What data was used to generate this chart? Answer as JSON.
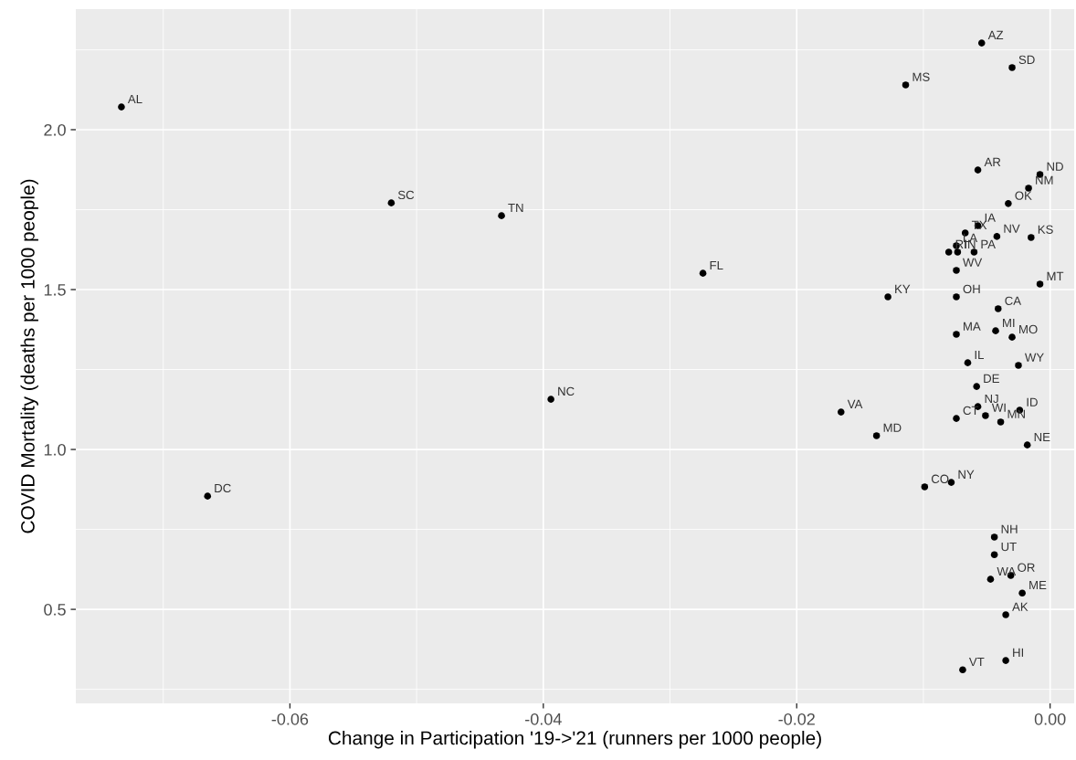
{
  "chart_data": {
    "type": "scatter",
    "xlabel": "Change in Participation '19->'21 (runners per 1000 people)",
    "ylabel": "COVID Mortality (deaths per 1000 people)",
    "xlim": [
      -0.0769,
      0.0019
    ],
    "ylim": [
      0.206,
      2.377
    ],
    "xticks": [
      {
        "value": -0.06,
        "label": "-0.06"
      },
      {
        "value": -0.04,
        "label": "-0.04"
      },
      {
        "value": -0.02,
        "label": "-0.02"
      },
      {
        "value": 0,
        "label": "0.00"
      }
    ],
    "yticks": [
      {
        "value": 0.5,
        "label": "0.5"
      },
      {
        "value": 1.0,
        "label": "1.0"
      },
      {
        "value": 1.5,
        "label": "1.5"
      },
      {
        "value": 2.0,
        "label": "2.0"
      }
    ],
    "grid": true,
    "marker": "circle",
    "legend": false,
    "series": [
      {
        "color": "#000000",
        "x": [
          -0.0733,
          -0.0665,
          -0.052,
          -0.0433,
          -0.0394,
          -0.0274,
          -0.0165,
          -0.0137,
          -0.0128,
          -0.0114,
          -0.0054,
          -0.003,
          -0.0057,
          -0.0008,
          -0.0017,
          -0.0033,
          -0.0057,
          -0.0067,
          -0.0042,
          -0.0015,
          -0.0074,
          -0.008,
          -0.0073,
          -0.006,
          -0.0074,
          -0.0008,
          -0.0074,
          -0.0041,
          -0.0074,
          -0.0043,
          -0.003,
          -0.0065,
          -0.0025,
          -0.0058,
          -0.0057,
          -0.0024,
          -0.0051,
          -0.0074,
          -0.0039,
          -0.0018,
          -0.0099,
          -0.0078,
          -0.0044,
          -0.0044,
          -0.0047,
          -0.0031,
          -0.0022,
          -0.0035,
          -0.0035,
          -0.0069
        ],
        "values": [
          2.071,
          0.854,
          1.771,
          1.731,
          1.157,
          1.551,
          1.117,
          1.043,
          1.477,
          2.14,
          2.271,
          2.194,
          1.874,
          1.86,
          1.817,
          1.769,
          1.7,
          1.677,
          1.666,
          1.663,
          1.637,
          1.617,
          1.617,
          1.617,
          1.56,
          1.517,
          1.477,
          1.44,
          1.36,
          1.371,
          1.351,
          1.271,
          1.263,
          1.197,
          1.134,
          1.123,
          1.106,
          1.097,
          1.086,
          1.014,
          0.883,
          0.897,
          0.726,
          0.671,
          0.594,
          0.606,
          0.551,
          0.483,
          0.34,
          0.311
        ]
      }
    ],
    "annotations": [
      {
        "text": "AL",
        "x": -0.0733,
        "y": 2.071
      },
      {
        "text": "DC",
        "x": -0.0665,
        "y": 0.854
      },
      {
        "text": "SC",
        "x": -0.052,
        "y": 1.771
      },
      {
        "text": "TN",
        "x": -0.0433,
        "y": 1.731
      },
      {
        "text": "NC",
        "x": -0.0394,
        "y": 1.157
      },
      {
        "text": "FL",
        "x": -0.0274,
        "y": 1.551
      },
      {
        "text": "VA",
        "x": -0.0165,
        "y": 1.117
      },
      {
        "text": "MD",
        "x": -0.0137,
        "y": 1.043
      },
      {
        "text": "KY",
        "x": -0.0128,
        "y": 1.477
      },
      {
        "text": "MS",
        "x": -0.0114,
        "y": 2.14
      },
      {
        "text": "AZ",
        "x": -0.0054,
        "y": 2.271
      },
      {
        "text": "SD",
        "x": -0.003,
        "y": 2.194
      },
      {
        "text": "AR",
        "x": -0.0057,
        "y": 1.874
      },
      {
        "text": "ND",
        "x": -0.0008,
        "y": 1.86
      },
      {
        "text": "NM",
        "x": -0.0017,
        "y": 1.817
      },
      {
        "text": "OK",
        "x": -0.0033,
        "y": 1.769
      },
      {
        "text": "IA",
        "x": -0.0057,
        "y": 1.7
      },
      {
        "text": "TX",
        "x": -0.0067,
        "y": 1.677
      },
      {
        "text": "NV",
        "x": -0.0042,
        "y": 1.666
      },
      {
        "text": "KS",
        "x": -0.0015,
        "y": 1.663
      },
      {
        "text": "LA",
        "x": -0.0074,
        "y": 1.637
      },
      {
        "text": "RI",
        "x": -0.008,
        "y": 1.617
      },
      {
        "text": "IN",
        "x": -0.0073,
        "y": 1.617
      },
      {
        "text": "PA",
        "x": -0.006,
        "y": 1.617
      },
      {
        "text": "WV",
        "x": -0.0074,
        "y": 1.56
      },
      {
        "text": "MT",
        "x": -0.0008,
        "y": 1.517
      },
      {
        "text": "OH",
        "x": -0.0074,
        "y": 1.477
      },
      {
        "text": "CA",
        "x": -0.0041,
        "y": 1.44
      },
      {
        "text": "MA",
        "x": -0.0074,
        "y": 1.36
      },
      {
        "text": "MI",
        "x": -0.0043,
        "y": 1.371
      },
      {
        "text": "MO",
        "x": -0.003,
        "y": 1.351
      },
      {
        "text": "IL",
        "x": -0.0065,
        "y": 1.271
      },
      {
        "text": "WY",
        "x": -0.0025,
        "y": 1.263
      },
      {
        "text": "DE",
        "x": -0.0058,
        "y": 1.197
      },
      {
        "text": "NJ",
        "x": -0.0057,
        "y": 1.134
      },
      {
        "text": "ID",
        "x": -0.0024,
        "y": 1.123
      },
      {
        "text": "WI",
        "x": -0.0051,
        "y": 1.106
      },
      {
        "text": "CT",
        "x": -0.0074,
        "y": 1.097
      },
      {
        "text": "MN",
        "x": -0.0039,
        "y": 1.086
      },
      {
        "text": "NE",
        "x": -0.0018,
        "y": 1.014
      },
      {
        "text": "CO",
        "x": -0.0099,
        "y": 0.883
      },
      {
        "text": "NY",
        "x": -0.0078,
        "y": 0.897
      },
      {
        "text": "NH",
        "x": -0.0044,
        "y": 0.726
      },
      {
        "text": "UT",
        "x": -0.0044,
        "y": 0.671
      },
      {
        "text": "WA",
        "x": -0.0047,
        "y": 0.594
      },
      {
        "text": "OR",
        "x": -0.0031,
        "y": 0.606
      },
      {
        "text": "ME",
        "x": -0.0022,
        "y": 0.551
      },
      {
        "text": "AK",
        "x": -0.0035,
        "y": 0.483
      },
      {
        "text": "HI",
        "x": -0.0035,
        "y": 0.34
      },
      {
        "text": "VT",
        "x": -0.0069,
        "y": 0.311
      }
    ]
  }
}
